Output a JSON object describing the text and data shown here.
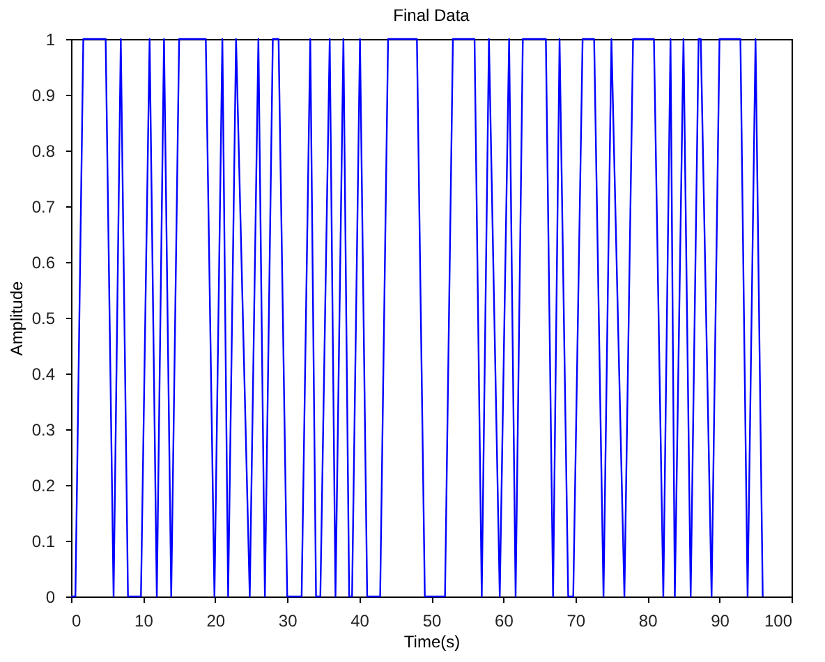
{
  "chart_data": {
    "type": "line",
    "title": "Final Data",
    "xlabel": "Time(s)",
    "ylabel": "Amplitude",
    "series": [
      {
        "color": "#0000ff",
        "x": [
          0,
          0.6,
          1.7,
          4.8,
          5.9,
          6.9,
          7.9,
          9.7,
          10.9,
          11.9,
          12.9,
          13.9,
          15,
          18.7,
          19.9,
          21,
          21.8,
          22.9,
          24.8,
          26,
          26.9,
          28,
          28.8,
          30,
          32,
          33.2,
          34,
          34.6,
          35.9,
          36.7,
          37.8,
          38.6,
          39,
          40.1,
          41.1,
          42.9,
          44,
          48,
          49.1,
          51.9,
          53,
          56,
          57,
          58,
          59.5,
          60.8,
          61.7,
          62.7,
          65.9,
          66.9,
          67.8,
          69,
          69.7,
          71,
          72.6,
          73.9,
          75,
          76.8,
          78,
          80.9,
          82.2,
          83.2,
          83.8,
          85,
          86,
          87.1,
          87.4,
          88.9,
          90,
          92.9,
          93.9,
          95,
          96
        ],
        "values": [
          0,
          0,
          1,
          1,
          0,
          1,
          0,
          0,
          1,
          0,
          1,
          0,
          1,
          1,
          0,
          1,
          0,
          1,
          0,
          1,
          0,
          1,
          1,
          0,
          0,
          1,
          0,
          0,
          1,
          0,
          1,
          0,
          0,
          1,
          0,
          0,
          1,
          1,
          0,
          0,
          1,
          1,
          0,
          1,
          0,
          1,
          0,
          1,
          1,
          0,
          1,
          0,
          0,
          1,
          1,
          0,
          1,
          0,
          1,
          1,
          0,
          1,
          0,
          1,
          0,
          1,
          1,
          0,
          1,
          1,
          0,
          1,
          0
        ]
      }
    ],
    "xlim": [
      0,
      100
    ],
    "xticks": [
      0,
      10,
      20,
      30,
      40,
      50,
      60,
      70,
      80,
      90,
      100
    ],
    "ylim": [
      0,
      1
    ],
    "yticks": [
      0,
      0.1,
      0.2,
      0.3,
      0.4,
      0.5,
      0.6,
      0.7,
      0.8,
      0.9,
      1
    ],
    "grid": false,
    "legend": false,
    "marker": "none",
    "line_style": "solid"
  }
}
